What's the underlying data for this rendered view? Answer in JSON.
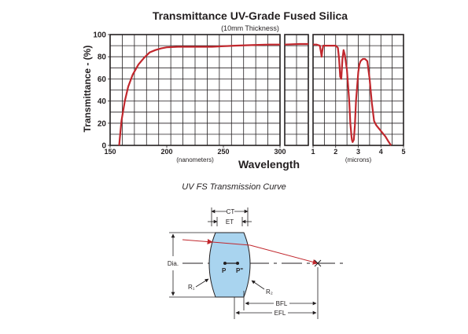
{
  "chart_data": {
    "type": "line",
    "title": "Transmittance UV-Grade Fused Silica",
    "subtitle": "(10mm Thickness)",
    "ylabel": "Transmittance - (%)",
    "xlabel": "Wavelength",
    "ylim": [
      0,
      100
    ],
    "y_ticks": [
      "0",
      "20",
      "40",
      "60",
      "80",
      "100"
    ],
    "grid": true,
    "color": "#c1272d",
    "panels": [
      {
        "unit_label": "(nanometers)",
        "xlim": [
          150,
          300
        ],
        "x_ticks": [
          "150",
          "200",
          "250",
          "300"
        ],
        "x": [
          158,
          160,
          163,
          166,
          170,
          175,
          180,
          185,
          190,
          195,
          200,
          210,
          220,
          240,
          250,
          260,
          275,
          290,
          300
        ],
        "y": [
          0,
          22,
          40,
          53,
          64,
          73,
          79,
          84,
          86,
          87.5,
          88.5,
          89,
          89,
          89,
          89.5,
          90,
          90.5,
          91,
          91
        ]
      },
      {
        "unit_label": "",
        "xlim": [
          300,
          2000
        ],
        "x_ticks": [],
        "x": [
          300,
          1000,
          2000
        ],
        "y": [
          91,
          91.5,
          91.5
        ]
      },
      {
        "unit_label": "(microns)",
        "xlim": [
          1,
          5
        ],
        "x_ticks": [
          "1",
          "2",
          "3",
          "4",
          "5"
        ],
        "x": [
          1.0,
          1.15,
          1.3,
          1.35,
          1.38,
          1.4,
          1.45,
          1.5,
          1.7,
          2.0,
          2.1,
          2.15,
          2.2,
          2.25,
          2.3,
          2.35,
          2.4,
          2.5,
          2.6,
          2.65,
          2.7,
          2.72,
          2.75,
          2.8,
          2.85,
          2.9,
          3.0,
          3.05,
          3.1,
          3.2,
          3.3,
          3.4,
          3.5,
          3.6,
          3.7,
          3.8,
          4.0,
          4.2,
          4.35,
          4.45
        ],
        "y": [
          91,
          91,
          90,
          84,
          80,
          84,
          90,
          90,
          90,
          90,
          88,
          78,
          62,
          60,
          78,
          86,
          82,
          68,
          40,
          20,
          8,
          5,
          3,
          5,
          18,
          40,
          66,
          73,
          76,
          78,
          78,
          76,
          60,
          38,
          22,
          18,
          13,
          8,
          3,
          0
        ]
      }
    ]
  },
  "caption": "UV FS Transmission Curve",
  "diagram": {
    "labels": {
      "ct": "CT",
      "et": "ET",
      "dia": "Dia.",
      "p": "P",
      "p_prime": "P\"",
      "r1": "R₁",
      "r2": "R₂",
      "bfl": "BFL",
      "efl": "EFL"
    },
    "lens_color": "#a9d4ef",
    "ray_color": "#c1272d"
  }
}
